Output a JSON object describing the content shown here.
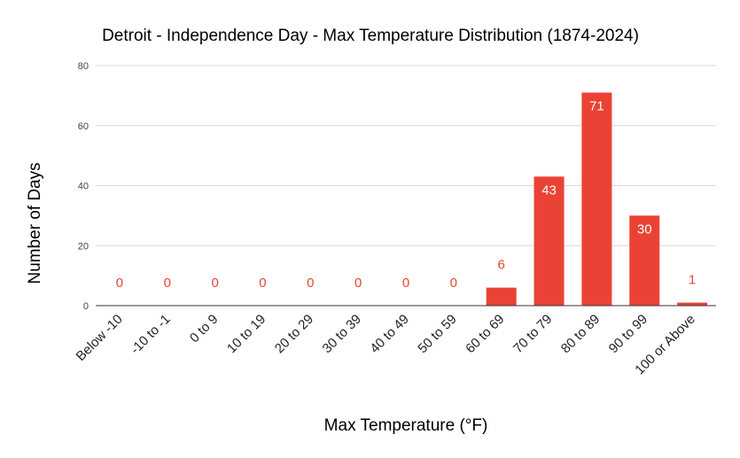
{
  "chart_data": {
    "type": "bar",
    "title": "Detroit - Independence Day - Max Temperature Distribution (1874-2024)",
    "xlabel": "Max Temperature (°F)",
    "ylabel": "Number of Days",
    "categories": [
      "Below -10",
      "-10 to -1",
      "0 to 9",
      "10 to 19",
      "20 to 29",
      "30 to 39",
      "40 to 49",
      "50 to 59",
      "60 to 69",
      "70 to 79",
      "80 to 89",
      "90 to 99",
      "100 or Above"
    ],
    "values": [
      0,
      0,
      0,
      0,
      0,
      0,
      0,
      0,
      6,
      43,
      71,
      30,
      1
    ],
    "ylim": [
      0,
      80
    ],
    "yticks": [
      0,
      20,
      40,
      60,
      80
    ],
    "grid": true,
    "legend": "none",
    "bar_color": "#ea4335",
    "label_color_outside": "#ea4335",
    "label_color_inside": "#ffffff"
  }
}
